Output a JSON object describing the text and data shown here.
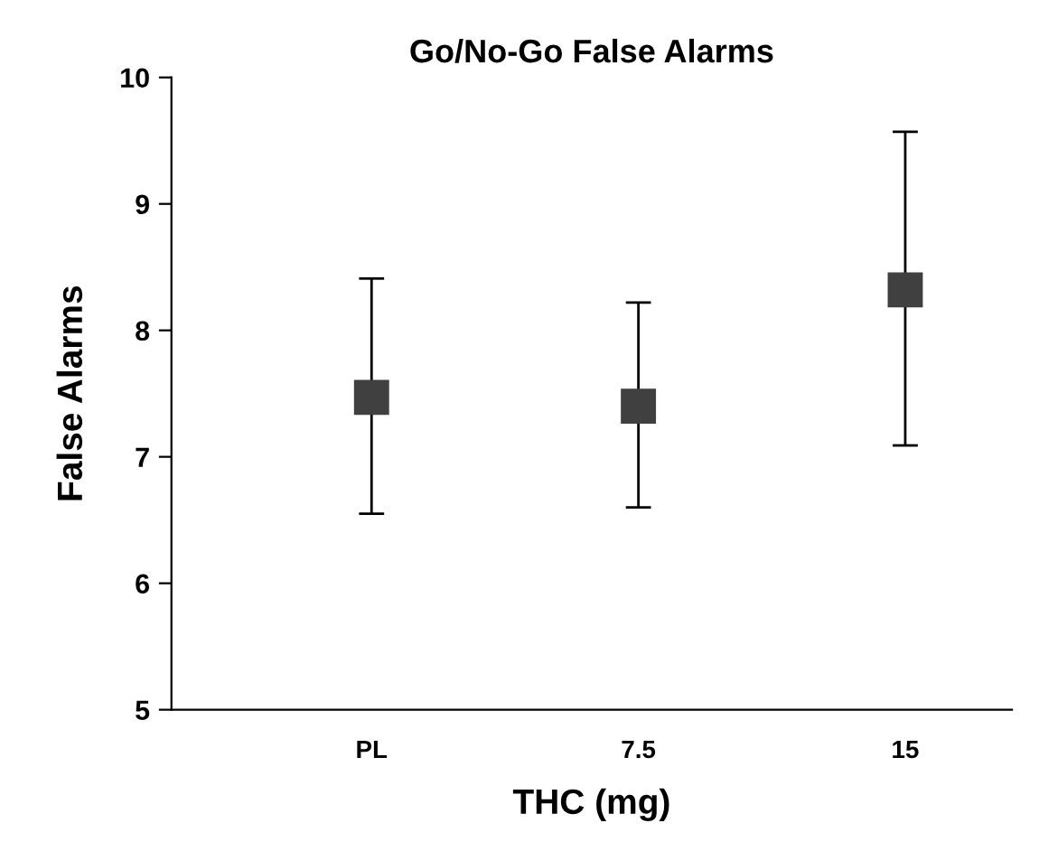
{
  "chart_data": {
    "type": "scatter",
    "title": "Go/No-Go False Alarms",
    "xlabel": "THC (mg)",
    "ylabel": "False Alarms",
    "categories": [
      "PL",
      "7.5",
      "15"
    ],
    "series": [
      {
        "color": "#404040",
        "values": [
          7.47,
          7.4,
          8.32
        ],
        "errors": [
          [
            6.55,
            8.41
          ],
          [
            6.6,
            8.22
          ],
          [
            7.09,
            9.57
          ]
        ]
      }
    ],
    "ylim": [
      5,
      10
    ],
    "yticks": [
      5,
      6,
      7,
      8,
      9,
      10
    ],
    "marker": "square",
    "grid": false,
    "legend": false
  }
}
